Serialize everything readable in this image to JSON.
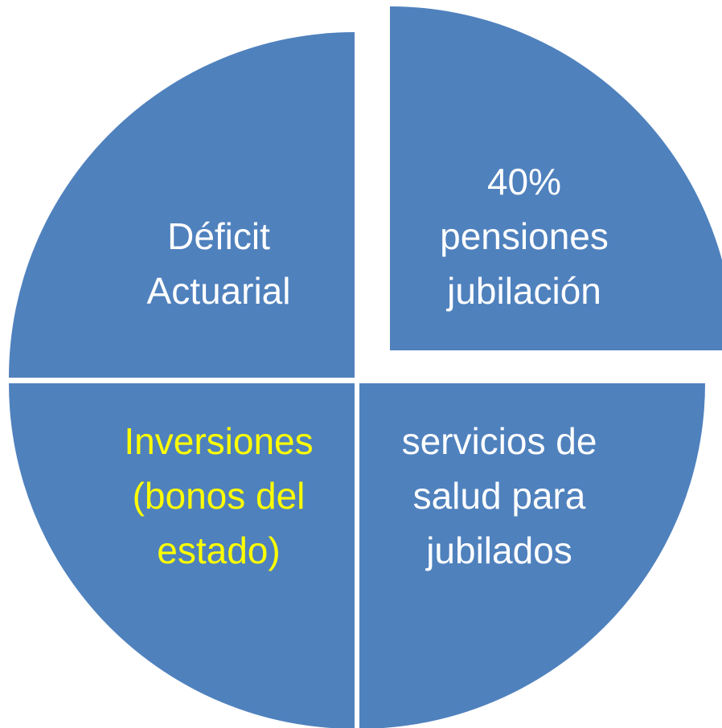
{
  "nodes": [
    {
      "lines": [
        "Déficit",
        "Actuarial"
      ]
    },
    {
      "lines": [
        "40%",
        "pensiones",
        "jubilación"
      ]
    },
    {
      "lines": [
        "Inversiones",
        "(bonos del",
        "estado)"
      ]
    },
    {
      "lines": [
        "servicios de",
        "salud para",
        "jubilados"
      ]
    }
  ]
}
